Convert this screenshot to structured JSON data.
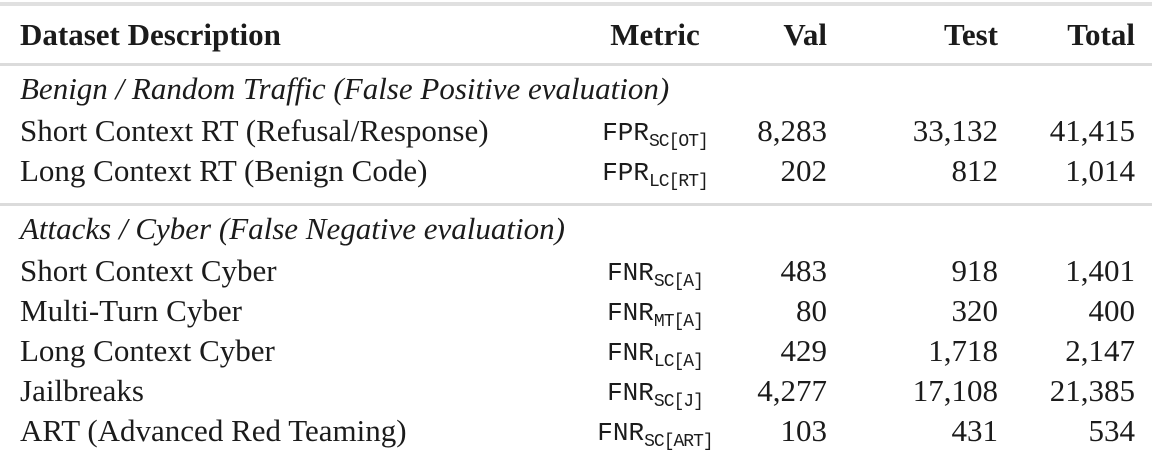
{
  "table": {
    "headers": {
      "description": "Dataset Description",
      "metric": "Metric",
      "val": "Val",
      "test": "Test",
      "total": "Total"
    },
    "sections": [
      {
        "title": "Benign / Random Traffic (False Positive evaluation)",
        "rows": [
          {
            "desc": "Short Context RT (Refusal/Response)",
            "metric_base": "FPR",
            "metric_sub": "SC[OT]",
            "val": "8,283",
            "test": "33,132",
            "total": "41,415"
          },
          {
            "desc": "Long Context RT (Benign Code)",
            "metric_base": "FPR",
            "metric_sub": "LC[RT]",
            "val": "202",
            "test": "812",
            "total": "1,014"
          }
        ]
      },
      {
        "title": "Attacks / Cyber (False Negative evaluation)",
        "rows": [
          {
            "desc": "Short Context Cyber",
            "metric_base": "FNR",
            "metric_sub": "SC[A]",
            "val": "483",
            "test": "918",
            "total": "1,401"
          },
          {
            "desc": "Multi-Turn Cyber",
            "metric_base": "FNR",
            "metric_sub": "MT[A]",
            "val": "80",
            "test": "320",
            "total": "400"
          },
          {
            "desc": "Long Context Cyber",
            "metric_base": "FNR",
            "metric_sub": "LC[A]",
            "val": "429",
            "test": "1,718",
            "total": "2,147"
          },
          {
            "desc": "Jailbreaks",
            "metric_base": "FNR",
            "metric_sub": "SC[J]",
            "val": "4,277",
            "test": "17,108",
            "total": "21,385"
          },
          {
            "desc": "ART (Advanced Red Teaming)",
            "metric_base": "FNR",
            "metric_sub": "SC[ART]",
            "val": "103",
            "test": "431",
            "total": "534"
          }
        ]
      }
    ],
    "colors": {
      "background": "#ffffff",
      "text": "#1b1b1b",
      "top_rule": "#e0e0e0",
      "mid_rule": "#dbdbdb"
    }
  }
}
